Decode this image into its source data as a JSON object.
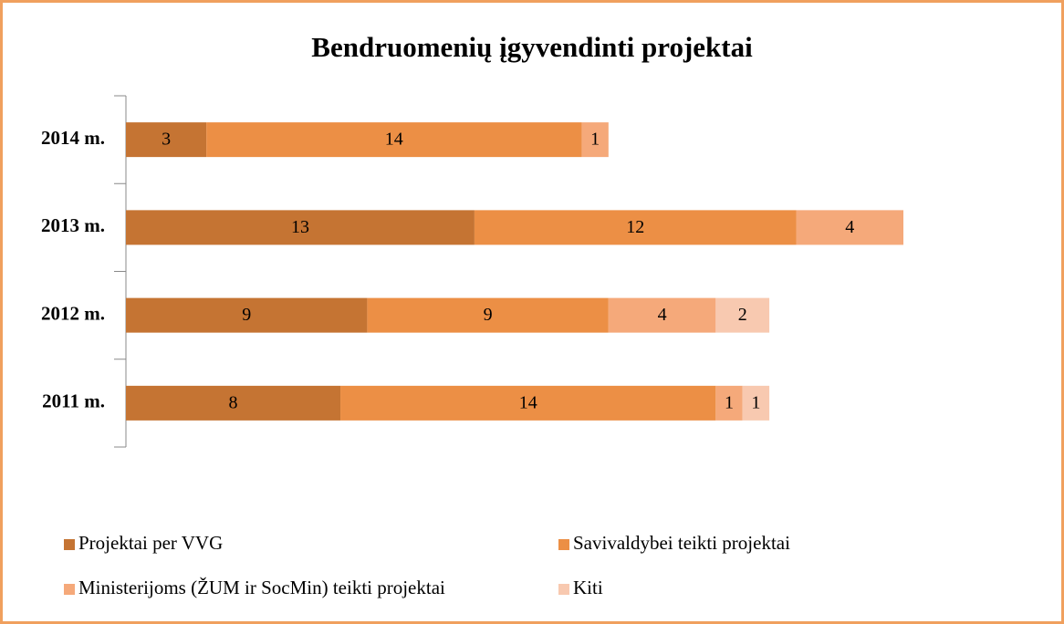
{
  "chart_data": {
    "type": "bar",
    "orientation": "horizontal",
    "stacked": true,
    "title": "Bendruomenių įgyvendinti projektai",
    "categories": [
      "2011 m.",
      "2012 m.",
      "2013 m.",
      "2014 m."
    ],
    "series": [
      {
        "name": "Projektai per VVG",
        "color": "#c57433",
        "values": [
          8,
          9,
          13,
          3
        ]
      },
      {
        "name": "Savivaldybei teikti projektai",
        "color": "#ec8f45",
        "values": [
          14,
          9,
          12,
          14
        ]
      },
      {
        "name": "Ministerijoms (ŽUM ir SocMin) teikti projektai",
        "color": "#f5a97a",
        "values": [
          1,
          4,
          4,
          1
        ]
      },
      {
        "name": "Kiti",
        "color": "#f8c9b0",
        "values": [
          1,
          2,
          null,
          null
        ]
      }
    ],
    "legend": "bottom"
  }
}
